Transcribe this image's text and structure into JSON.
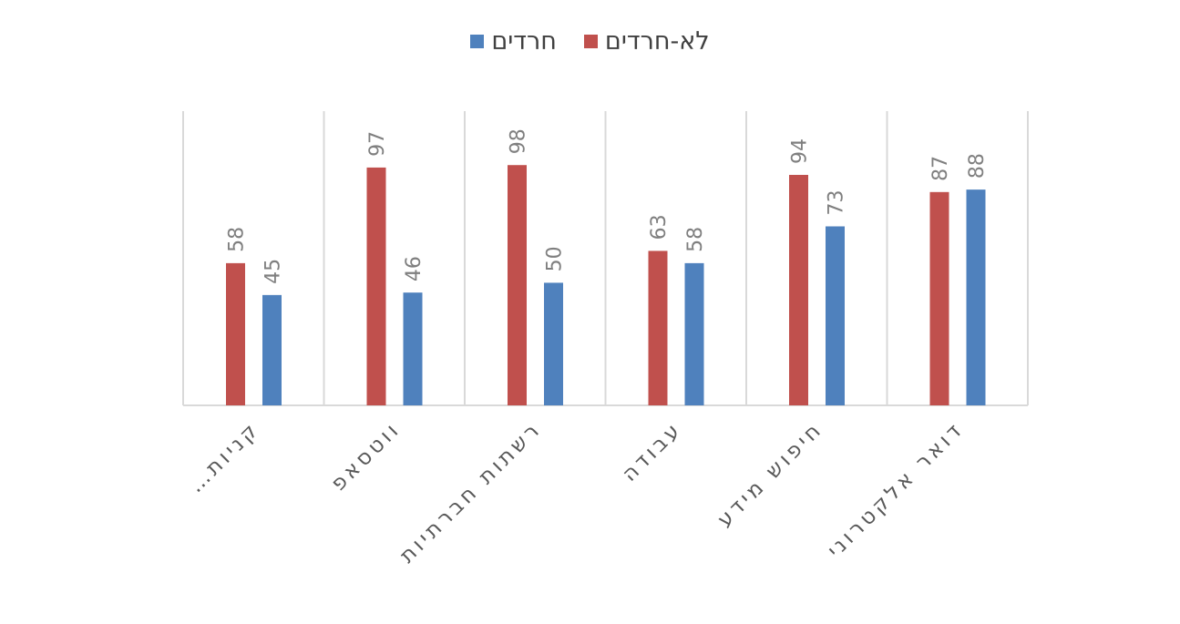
{
  "chart_data": {
    "type": "bar",
    "title": "",
    "xlabel": "",
    "ylabel": "",
    "ylim": [
      0,
      120
    ],
    "grid": "vertical category separators",
    "legend_position": "top",
    "categories": [
      "קניות…",
      "ווטסאפ",
      "רשתות חברתיות",
      "עבודה",
      "חיפוש מידע",
      "דואר אלקטרוני"
    ],
    "series": [
      {
        "name": "לא-חרדים",
        "color": "#c0504d",
        "values": [
          58,
          97,
          98,
          63,
          94,
          87
        ]
      },
      {
        "name": "חרדים",
        "color": "#4f81bd",
        "values": [
          45,
          46,
          50,
          58,
          73,
          88
        ]
      }
    ]
  }
}
